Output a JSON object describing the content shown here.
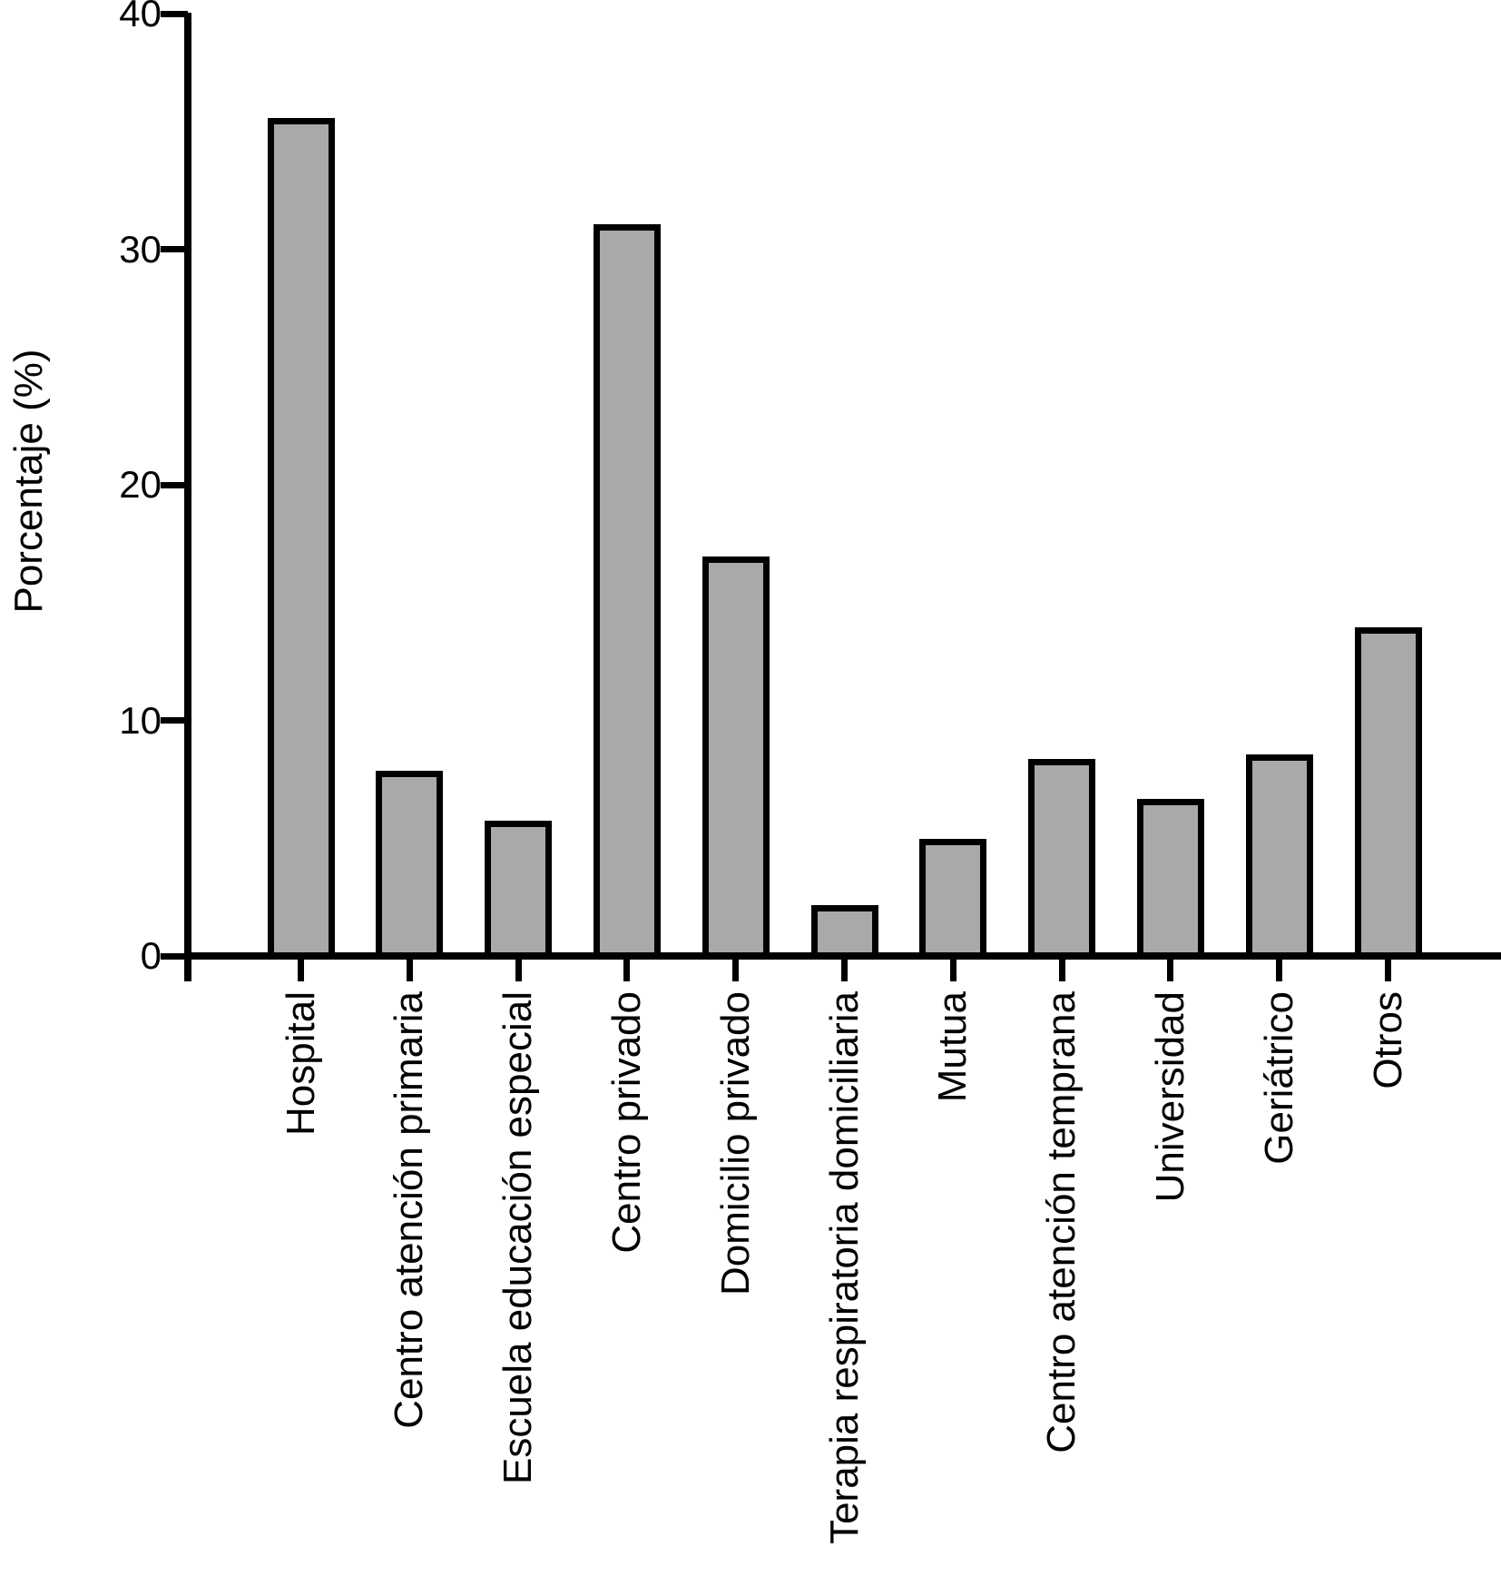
{
  "chart_data": {
    "type": "bar",
    "title": "",
    "xlabel": "",
    "ylabel": "Porcentaje (%)",
    "categories": [
      "Hospital",
      "Centro atención primaria",
      "Escuela educación especial",
      "Centro privado",
      "Domicilio privado",
      "Terapia respiratoria domiciliaria",
      "Mutua",
      "Centro atención temprana",
      "Universidad",
      "Geriátrico",
      "Otros"
    ],
    "values": [
      35.4,
      7.7,
      5.6,
      30.9,
      16.8,
      2.0,
      4.8,
      8.2,
      6.5,
      8.4,
      13.8
    ],
    "yticks": [
      0,
      10,
      20,
      30,
      40
    ],
    "ylim": [
      0,
      40
    ],
    "grid": false,
    "legend": null,
    "bar_color": "#a9a9a9",
    "bar_border_color": "#000000",
    "axis_color": "#000000"
  }
}
